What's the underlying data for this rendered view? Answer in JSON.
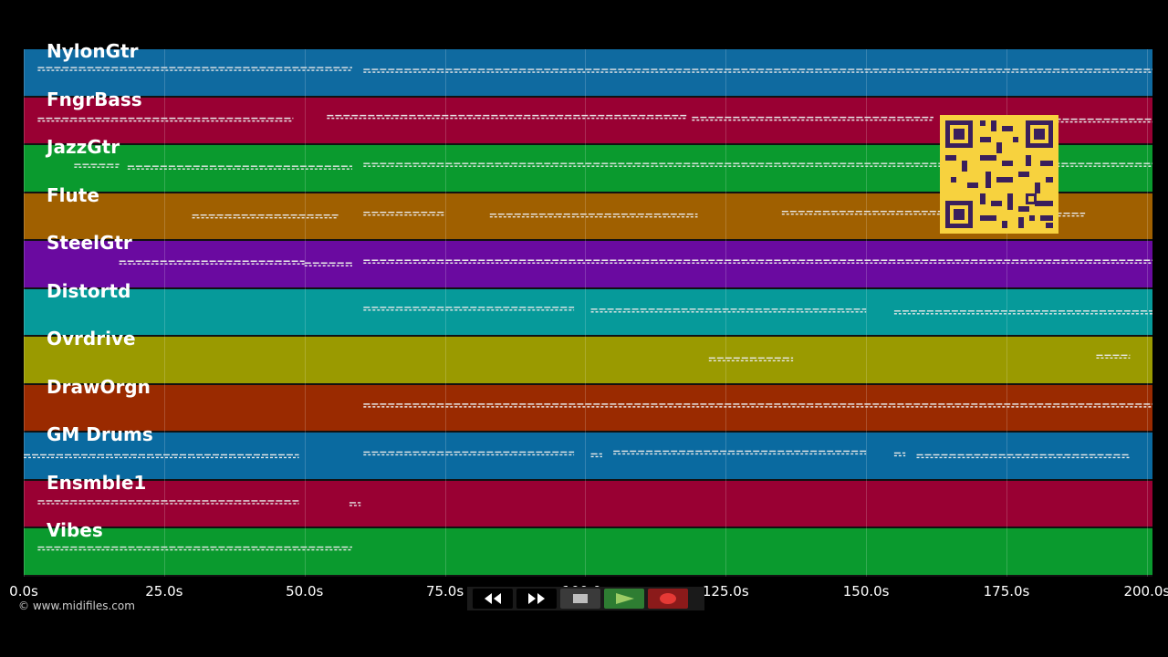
{
  "tracks": [
    {
      "label": "NylonGtr",
      "color": "#0f6aa0"
    },
    {
      "label": "FngrBass",
      "color": "#990033"
    },
    {
      "label": "JazzGtr",
      "color": "#0a9a2e"
    },
    {
      "label": "Flute",
      "color": "#a06000"
    },
    {
      "label": "SteelGtr",
      "color": "#6a0aa0"
    },
    {
      "label": "Distortd",
      "color": "#069a9a"
    },
    {
      "label": "Ovrdrive",
      "color": "#9a9a00"
    },
    {
      "label": "DrawOrgn",
      "color": "#9a2a00"
    },
    {
      "label": "GM Drums",
      "color": "#0a6aa0"
    },
    {
      "label": "Ensmble1",
      "color": "#990033"
    },
    {
      "label": "Vibes",
      "color": "#0a9a2e"
    }
  ],
  "timeline": {
    "max_seconds": 201,
    "ticks": [
      "0.0s",
      "25.0s",
      "50.0s",
      "75.0s",
      "100.0s",
      "125.0s",
      "150.0s",
      "175.0s",
      "200.0s"
    ],
    "tick_values": [
      0,
      25,
      50,
      75,
      100,
      125,
      150,
      175,
      200
    ]
  },
  "copyright": "© www.midifiles.com",
  "transport": {
    "buttons": [
      {
        "name": "rewind-button",
        "icon": "rewind-icon",
        "bg": "#000000"
      },
      {
        "name": "fast-forward-button",
        "icon": "fast-forward-icon",
        "bg": "#000000"
      },
      {
        "name": "stop-button",
        "icon": "stop-icon",
        "bg": "#3a3a3a"
      },
      {
        "name": "play-button",
        "icon": "play-icon",
        "bg": "#2e7d32"
      },
      {
        "name": "record-button",
        "icon": "record-icon",
        "bg": "#8b1a1a"
      }
    ]
  },
  "note_segments": [
    {
      "track": 0,
      "segs": [
        [
          2.5,
          58.5
        ],
        [
          60.5,
          201
        ]
      ]
    },
    {
      "track": 1,
      "segs": [
        [
          2.5,
          48
        ],
        [
          54,
          118
        ],
        [
          119,
          162
        ],
        [
          166,
          201
        ]
      ]
    },
    {
      "track": 2,
      "segs": [
        [
          9,
          17
        ],
        [
          18.5,
          58.5
        ],
        [
          60.5,
          201
        ]
      ]
    },
    {
      "track": 3,
      "segs": [
        [
          30,
          56
        ],
        [
          60.5,
          75
        ],
        [
          83,
          120
        ],
        [
          135,
          167
        ],
        [
          172,
          189
        ]
      ]
    },
    {
      "track": 4,
      "segs": [
        [
          17,
          50
        ],
        [
          50,
          58.5
        ],
        [
          60.5,
          201
        ]
      ]
    },
    {
      "track": 5,
      "segs": [
        [
          60.5,
          98
        ],
        [
          101,
          150
        ],
        [
          155,
          201
        ]
      ]
    },
    {
      "track": 6,
      "segs": [
        [
          122,
          137
        ],
        [
          191,
          197
        ]
      ]
    },
    {
      "track": 7,
      "segs": [
        [
          60.5,
          201
        ]
      ]
    },
    {
      "track": 8,
      "segs": [
        [
          0,
          49
        ],
        [
          60.5,
          98
        ],
        [
          101,
          103
        ],
        [
          105,
          150
        ],
        [
          155,
          157
        ],
        [
          159,
          197
        ]
      ]
    },
    {
      "track": 9,
      "segs": [
        [
          2.5,
          49
        ],
        [
          58,
          60
        ]
      ]
    },
    {
      "track": 10,
      "segs": [
        [
          2.5,
          58.5
        ]
      ]
    }
  ]
}
